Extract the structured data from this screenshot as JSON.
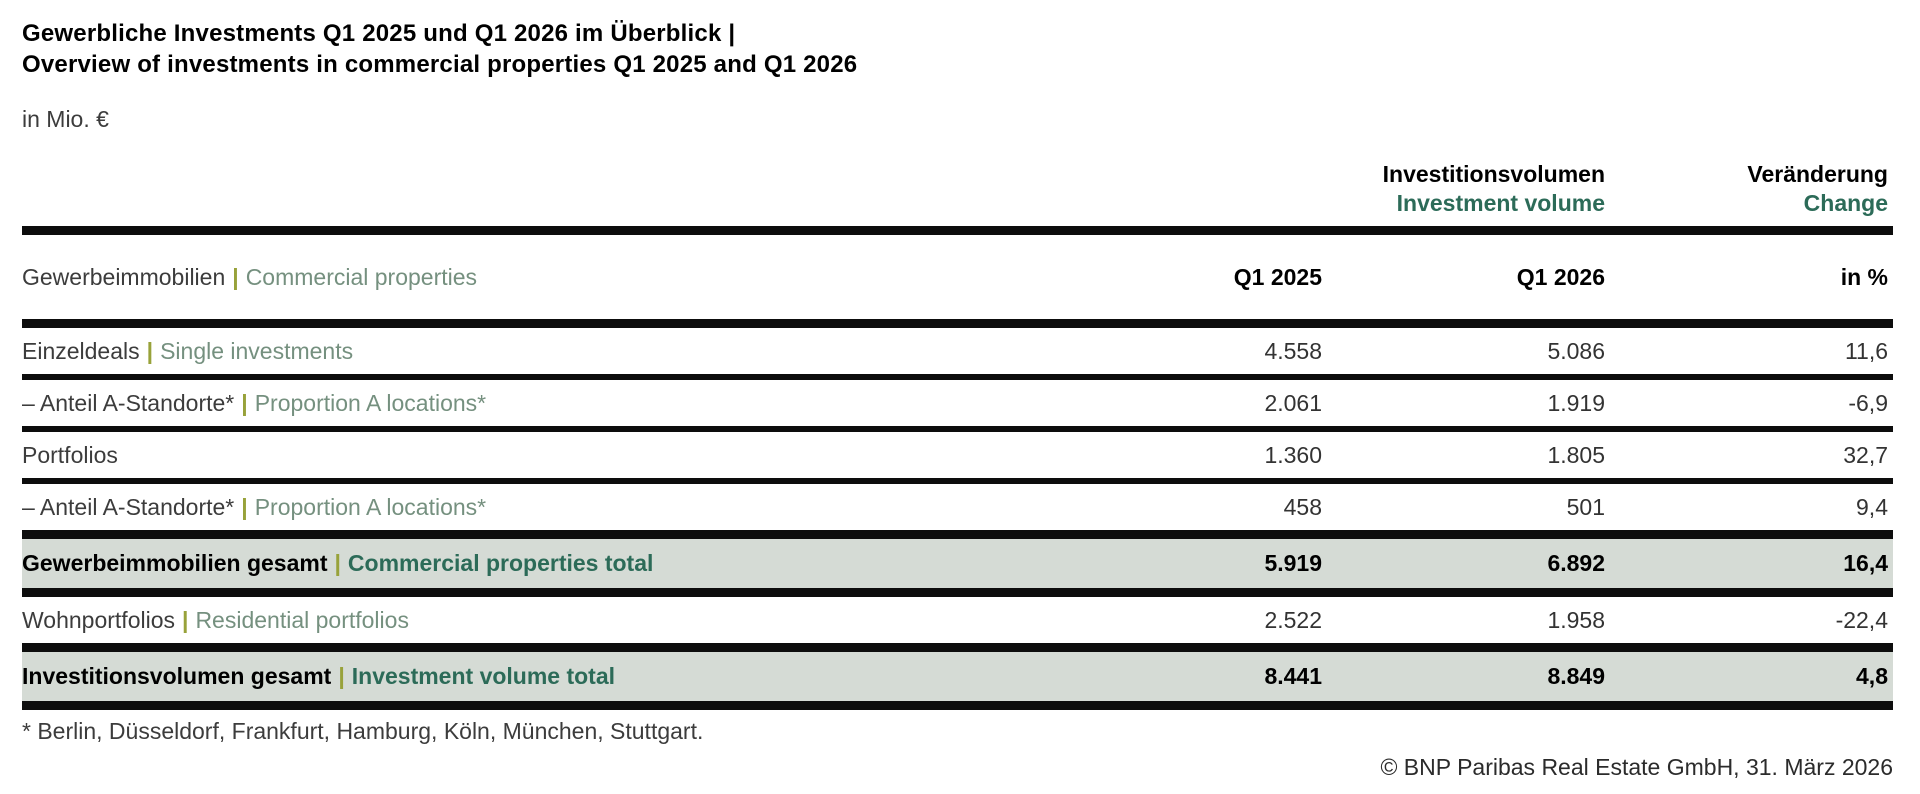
{
  "header": {
    "title_de": "Gewerbliche Investments Q1 2025 und Q1 2026 im Überblick |",
    "title_en": "Overview of investments in commercial properties Q1 2025 and Q1 2026",
    "unit": "in Mio. €"
  },
  "colors": {
    "accent_green_bold": "#2c6b58",
    "accent_green_regular": "#75907f",
    "pipe_olive": "#98a23a",
    "total_row_bg": "#d5dbd5",
    "rule_black": "#0d0d0d"
  },
  "chart_data": {
    "type": "table",
    "title": "Gewerbliche Investments Q1 2025 und Q1 2026 im Überblick | Overview of investments in commercial properties Q1 2025 and Q1 2026",
    "unit": "in Mio. €",
    "column_groups": [
      {
        "de": "Investitionsvolumen",
        "en": "Investment volume",
        "spans_columns": [
          "Q1 2025",
          "Q1 2026"
        ]
      },
      {
        "de": "Veränderung",
        "en": "Change",
        "spans_columns": [
          "in %"
        ]
      }
    ],
    "header_row": {
      "de": "Gewerbeimmobilien",
      "sep": "|",
      "en": "Commercial properties",
      "cols": [
        "Q1 2025",
        "Q1 2026",
        "in %"
      ]
    },
    "rows": [
      {
        "de": "Einzeldeals",
        "sep": "|",
        "en": "Single investments",
        "values": [
          "4.558",
          "5.086",
          "11,6"
        ],
        "style": "normal"
      },
      {
        "de": "– Anteil A-Standorte*",
        "sep": "|",
        "en": "Proportion A locations*",
        "values": [
          "2.061",
          "1.919",
          "-6,9"
        ],
        "style": "normal"
      },
      {
        "de": "Portfolios",
        "sep": "",
        "en": "",
        "values": [
          "1.360",
          "1.805",
          "32,7"
        ],
        "style": "normal"
      },
      {
        "de": "– Anteil A-Standorte*",
        "sep": "|",
        "en": "Proportion A locations*",
        "values": [
          "458",
          "501",
          "9,4"
        ],
        "style": "normal"
      },
      {
        "de": "Gewerbeimmobilien gesamt",
        "sep": "|",
        "en": "Commercial properties total",
        "values": [
          "5.919",
          "6.892",
          "16,4"
        ],
        "style": "total"
      },
      {
        "de": "Wohnportfolios",
        "sep": "|",
        "en": "Residential portfolios",
        "values": [
          "2.522",
          "1.958",
          "-22,4"
        ],
        "style": "normal"
      },
      {
        "de": "Investitionsvolumen gesamt",
        "sep": "|",
        "en": "Investment volume total",
        "values": [
          "8.441",
          "8.849",
          "4,8"
        ],
        "style": "total"
      }
    ]
  },
  "footer": {
    "footnote": "* Berlin, Düsseldorf, Frankfurt, Hamburg, Köln, München, Stuttgart.",
    "copyright": "© BNP Paribas Real Estate GmbH, 31. März 2026"
  }
}
